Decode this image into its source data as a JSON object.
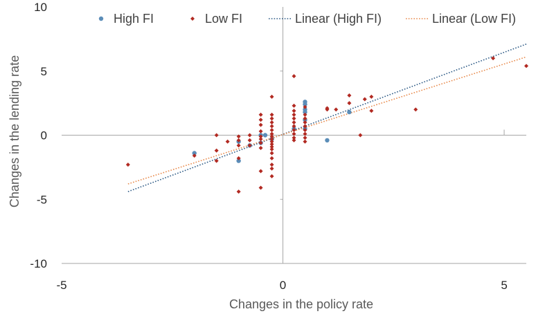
{
  "chart_data": {
    "type": "scatter",
    "xlabel": "Changes in the policy rate",
    "ylabel": "Changes in the lending rate",
    "xlim": [
      -5,
      5.5
    ],
    "ylim": [
      -10,
      10
    ],
    "x_ticks": [
      "-5",
      "0",
      "5"
    ],
    "y_ticks": [
      "10",
      "5",
      "0",
      "-5",
      "-10"
    ],
    "grid": false,
    "legend_position": "top",
    "series": [
      {
        "name": "High FI",
        "marker": "circle",
        "color": "#5b8db8",
        "points": [
          [
            -2,
            -1.4
          ],
          [
            -1,
            -0.5
          ],
          [
            -1,
            -2
          ],
          [
            -0.75,
            -0.8
          ],
          [
            -0.5,
            -0.6
          ],
          [
            -0.5,
            0
          ],
          [
            -0.4,
            0
          ],
          [
            -0.25,
            -0.3
          ],
          [
            0.25,
            0.5
          ],
          [
            0.5,
            2.6
          ],
          [
            0.5,
            2.4
          ],
          [
            0.5,
            2.0
          ],
          [
            0.5,
            1.8
          ],
          [
            0.5,
            1.2
          ],
          [
            0.5,
            0.5
          ],
          [
            1,
            -0.4
          ],
          [
            1.5,
            1.8
          ]
        ]
      },
      {
        "name": "Low FI",
        "marker": "diamond",
        "color": "#b22a22",
        "points": [
          [
            -3.5,
            -2.3
          ],
          [
            -2,
            -1.6
          ],
          [
            -1.5,
            0
          ],
          [
            -1.5,
            -1.2
          ],
          [
            -1.5,
            -2
          ],
          [
            -1.25,
            -0.5
          ],
          [
            -1,
            -4.4
          ],
          [
            -1,
            -0.1
          ],
          [
            -1,
            -0.4
          ],
          [
            -1,
            -0.8
          ],
          [
            -1,
            -1.8
          ],
          [
            -0.75,
            0
          ],
          [
            -0.75,
            -0.4
          ],
          [
            -0.75,
            -0.8
          ],
          [
            -0.5,
            -4.1
          ],
          [
            -0.5,
            -2.8
          ],
          [
            -0.5,
            1.6
          ],
          [
            -0.5,
            1.2
          ],
          [
            -0.5,
            0.8
          ],
          [
            -0.5,
            0.3
          ],
          [
            -0.5,
            -0.1
          ],
          [
            -0.5,
            -0.3
          ],
          [
            -0.5,
            -0.6
          ],
          [
            -0.5,
            -1.0
          ],
          [
            -0.25,
            3.0
          ],
          [
            -0.25,
            1.6
          ],
          [
            -0.25,
            1.3
          ],
          [
            -0.25,
            1.0
          ],
          [
            -0.25,
            0.7
          ],
          [
            -0.25,
            0.4
          ],
          [
            -0.25,
            0.1
          ],
          [
            -0.25,
            -0.1
          ],
          [
            -0.25,
            -0.3
          ],
          [
            -0.25,
            -0.5
          ],
          [
            -0.25,
            -0.7
          ],
          [
            -0.25,
            -0.9
          ],
          [
            -0.25,
            -1.1
          ],
          [
            -0.25,
            -1.4
          ],
          [
            -0.25,
            -1.8
          ],
          [
            -0.25,
            -2.3
          ],
          [
            -0.25,
            -2.6
          ],
          [
            -0.25,
            -3.2
          ],
          [
            0.25,
            4.6
          ],
          [
            0.25,
            2.3
          ],
          [
            0.25,
            1.9
          ],
          [
            0.25,
            1.6
          ],
          [
            0.25,
            1.3
          ],
          [
            0.25,
            1.0
          ],
          [
            0.25,
            0.7
          ],
          [
            0.25,
            0.4
          ],
          [
            0.25,
            0.1
          ],
          [
            0.25,
            -0.2
          ],
          [
            0.25,
            -0.4
          ],
          [
            0.5,
            2.2
          ],
          [
            0.5,
            1.6
          ],
          [
            0.5,
            1.3
          ],
          [
            0.5,
            1.0
          ],
          [
            0.5,
            0.7
          ],
          [
            0.5,
            0.4
          ],
          [
            0.5,
            0.1
          ],
          [
            0.5,
            -0.2
          ],
          [
            0.5,
            -0.5
          ],
          [
            1,
            2.1
          ],
          [
            1,
            2.0
          ],
          [
            1.2,
            2.0
          ],
          [
            1.5,
            3.1
          ],
          [
            1.5,
            2.5
          ],
          [
            1.75,
            0
          ],
          [
            1.85,
            2.8
          ],
          [
            2,
            3.0
          ],
          [
            2,
            1.9
          ],
          [
            3,
            2.0
          ],
          [
            4.75,
            6.0
          ],
          [
            5.5,
            5.4
          ]
        ]
      },
      {
        "name": "Linear (High FI)",
        "kind": "trendline",
        "style": "dotted",
        "color": "#2e5b86",
        "line": [
          [
            -3.5,
            -4.4
          ],
          [
            5.5,
            7.1
          ]
        ]
      },
      {
        "name": "Linear (Low FI)",
        "kind": "trendline",
        "style": "dotted",
        "color": "#e8894a",
        "line": [
          [
            -3.5,
            -3.8
          ],
          [
            5.5,
            6.1
          ]
        ]
      }
    ]
  }
}
